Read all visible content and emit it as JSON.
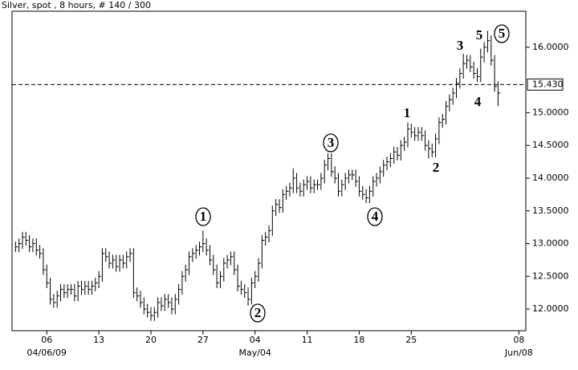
{
  "chart_data": {
    "type": "hlc",
    "title": "Silver, spot , 8 hours, # 140 / 300",
    "ylim": [
      11.67,
      16.55
    ],
    "yticks": [
      {
        "value": 12,
        "label": "12.0000"
      },
      {
        "value": 12.5,
        "label": "12.5000"
      },
      {
        "value": 13,
        "label": "13.0000"
      },
      {
        "value": 13.5,
        "label": "13.5000"
      },
      {
        "value": 14,
        "label": "14.0000"
      },
      {
        "value": 14.5,
        "label": "14.5000"
      },
      {
        "value": 15,
        "label": "15.0000"
      },
      {
        "value": 16,
        "label": "16.0000"
      }
    ],
    "xlim": [
      -1,
      147
    ],
    "xticks": [
      {
        "value": 9,
        "label": "06"
      },
      {
        "value": 24,
        "label": "13"
      },
      {
        "value": 39,
        "label": "20"
      },
      {
        "value": 54,
        "label": "27"
      },
      {
        "value": 69,
        "label": "04"
      },
      {
        "value": 84,
        "label": "11"
      },
      {
        "value": 99,
        "label": "18"
      },
      {
        "value": 114,
        "label": "25"
      },
      {
        "value": 145,
        "label": "08"
      }
    ],
    "date_labels": [
      {
        "value": 9,
        "label": "04/06/09"
      },
      {
        "value": 69,
        "label": "May/04"
      },
      {
        "value": 145,
        "label": "Jun/08"
      }
    ],
    "hline": {
      "value": 15.43,
      "label": "15.430"
    },
    "color": "#000000",
    "high": [
      13.03,
      13.08,
      13.18,
      13.18,
      13.13,
      13.08,
      13.08,
      12.98,
      12.93,
      12.68,
      12.48,
      12.23,
      12.28,
      12.38,
      12.38,
      12.38,
      12.38,
      12.38,
      12.43,
      12.43,
      12.43,
      12.43,
      12.43,
      12.48,
      12.58,
      12.93,
      12.93,
      12.88,
      12.83,
      12.83,
      12.83,
      12.83,
      12.88,
      12.93,
      12.93,
      12.33,
      12.28,
      12.18,
      12.08,
      12.03,
      12.03,
      12.18,
      12.18,
      12.23,
      12.23,
      12.18,
      12.23,
      12.38,
      12.58,
      12.68,
      12.88,
      12.93,
      12.98,
      13.03,
      13.2,
      13.08,
      12.98,
      12.83,
      12.68,
      12.58,
      12.78,
      12.83,
      12.88,
      12.88,
      12.68,
      12.43,
      12.38,
      12.33,
      12.48,
      12.58,
      12.78,
      13.13,
      13.18,
      13.28,
      13.58,
      13.68,
      13.68,
      13.83,
      13.88,
      13.93,
      14.15,
      14.08,
      13.93,
      13.98,
      14.03,
      14.03,
      13.98,
      13.98,
      14.08,
      14.28,
      14.38,
      14.38,
      14.18,
      14.08,
      13.98,
      14.08,
      14.13,
      14.13,
      14.13,
      14.03,
      13.88,
      13.83,
      13.88,
      14.03,
      14.08,
      14.18,
      14.28,
      14.33,
      14.38,
      14.48,
      14.48,
      14.58,
      14.63,
      14.85,
      14.83,
      14.78,
      14.78,
      14.78,
      14.73,
      14.58,
      14.53,
      14.68,
      14.93,
      14.98,
      15.18,
      15.28,
      15.38,
      15.53,
      15.68,
      15.9,
      15.88,
      15.88,
      15.78,
      15.68,
      15.98,
      16.08,
      16.25,
      16.18,
      15.88,
      15.48
    ],
    "low": [
      12.87,
      12.87,
      12.92,
      12.97,
      12.87,
      12.87,
      12.82,
      12.77,
      12.52,
      12.32,
      12.07,
      12.02,
      12.02,
      12.12,
      12.17,
      12.17,
      12.22,
      12.12,
      12.12,
      12.22,
      12.22,
      12.22,
      12.22,
      12.27,
      12.32,
      12.42,
      12.72,
      12.62,
      12.62,
      12.57,
      12.57,
      12.62,
      12.62,
      12.72,
      12.17,
      12.12,
      12.02,
      11.92,
      11.87,
      11.82,
      11.82,
      11.87,
      11.97,
      11.97,
      12.02,
      11.92,
      11.92,
      12.07,
      12.22,
      12.42,
      12.52,
      12.72,
      12.77,
      12.82,
      12.87,
      12.82,
      12.67,
      12.52,
      12.32,
      12.32,
      12.42,
      12.62,
      12.67,
      12.52,
      12.27,
      12.22,
      12.17,
      12.05,
      12.07,
      12.32,
      12.42,
      12.62,
      12.97,
      13.02,
      13.12,
      13.42,
      13.47,
      13.47,
      13.67,
      13.72,
      13.77,
      13.77,
      13.72,
      13.72,
      13.82,
      13.77,
      13.77,
      13.82,
      13.82,
      13.92,
      14.12,
      14.02,
      13.92,
      13.72,
      13.72,
      13.82,
      13.92,
      13.97,
      13.87,
      13.72,
      13.67,
      13.62,
      13.62,
      13.72,
      13.87,
      13.92,
      14.02,
      14.12,
      14.17,
      14.22,
      14.27,
      14.27,
      14.42,
      14.47,
      14.62,
      14.57,
      14.57,
      14.57,
      14.42,
      14.3,
      14.32,
      14.32,
      14.52,
      14.77,
      14.82,
      15.02,
      15.12,
      15.22,
      15.37,
      15.52,
      15.67,
      15.62,
      15.52,
      15.47,
      15.47,
      15.77,
      15.92,
      15.72,
      15.32,
      15.1
    ],
    "close": [
      12.95,
      13.0,
      13.1,
      13.05,
      12.95,
      13.0,
      12.9,
      12.85,
      12.6,
      12.4,
      12.15,
      12.1,
      12.2,
      12.3,
      12.25,
      12.3,
      12.3,
      12.2,
      12.35,
      12.3,
      12.35,
      12.3,
      12.35,
      12.4,
      12.5,
      12.85,
      12.8,
      12.7,
      12.75,
      12.65,
      12.75,
      12.7,
      12.8,
      12.85,
      12.25,
      12.2,
      12.1,
      12.0,
      11.95,
      11.9,
      11.95,
      12.1,
      12.05,
      12.15,
      12.1,
      12.0,
      12.15,
      12.3,
      12.5,
      12.6,
      12.8,
      12.85,
      12.9,
      12.95,
      13.0,
      12.9,
      12.75,
      12.6,
      12.4,
      12.5,
      12.7,
      12.75,
      12.8,
      12.6,
      12.35,
      12.3,
      12.25,
      12.15,
      12.4,
      12.5,
      12.7,
      13.05,
      13.1,
      13.2,
      13.5,
      13.6,
      13.55,
      13.75,
      13.8,
      13.85,
      14.0,
      13.85,
      13.8,
      13.9,
      13.95,
      13.85,
      13.9,
      13.9,
      14.0,
      14.2,
      14.3,
      14.1,
      14.0,
      13.8,
      13.9,
      14.0,
      14.05,
      14.05,
      13.95,
      13.8,
      13.75,
      13.7,
      13.8,
      13.95,
      14.0,
      14.1,
      14.2,
      14.25,
      14.3,
      14.4,
      14.35,
      14.5,
      14.55,
      14.75,
      14.7,
      14.65,
      14.7,
      14.65,
      14.5,
      14.45,
      14.4,
      14.6,
      14.85,
      14.9,
      15.1,
      15.2,
      15.3,
      15.45,
      15.6,
      15.75,
      15.8,
      15.7,
      15.6,
      15.55,
      15.85,
      16.0,
      16.1,
      15.8,
      15.4,
      15.3
    ],
    "annotations": [
      {
        "text": "1",
        "circled": true
      },
      {
        "text": "2",
        "circled": true
      },
      {
        "text": "3",
        "circled": true
      },
      {
        "text": "4",
        "circled": true
      },
      {
        "text": "5",
        "circled": true
      },
      {
        "text": "1",
        "circled": false
      },
      {
        "text": "2",
        "circled": false
      },
      {
        "text": "3",
        "circled": false
      },
      {
        "text": "4",
        "circled": false
      },
      {
        "text": "5",
        "circled": false
      }
    ]
  }
}
